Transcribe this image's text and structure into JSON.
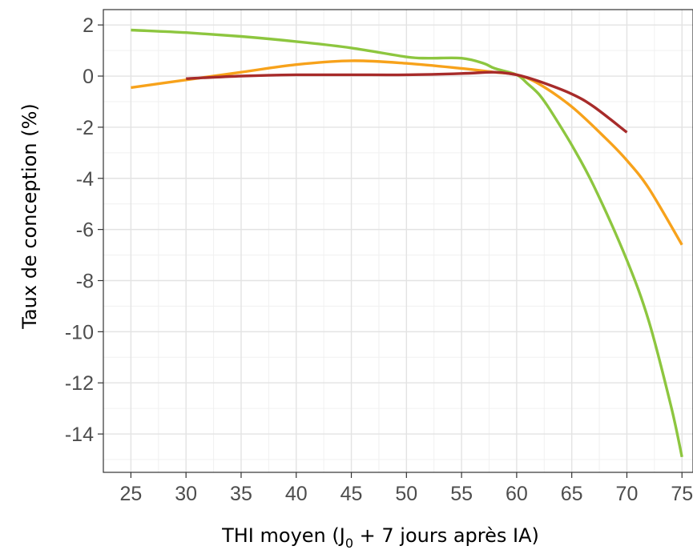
{
  "chart_data": {
    "type": "line",
    "title": "",
    "xlabel": "THI moyen",
    "xlabel_parts": {
      "main": "THI moyen (J",
      "sub": "0",
      "rest": " + 7 jours après IA)"
    },
    "ylabel": "Taux de conception (%)",
    "xlim": [
      22.5,
      76
    ],
    "ylim": [
      -15.5,
      2.6
    ],
    "x_ticks": [
      25,
      30,
      35,
      40,
      45,
      50,
      55,
      60,
      65,
      70,
      75
    ],
    "y_ticks": [
      2,
      0,
      -2,
      -4,
      -6,
      -8,
      -10,
      -12,
      -14
    ],
    "x_tick_labels": [
      "25",
      "30",
      "35",
      "40",
      "45",
      "50",
      "55",
      "60",
      "65",
      "70",
      "75"
    ],
    "y_tick_labels": [
      "2",
      "0",
      "-2",
      "-4",
      "-6",
      "-8",
      "-10",
      "-12",
      "-14"
    ],
    "grid": true,
    "legend": "none",
    "series": [
      {
        "color": "#8dc63f",
        "x": [
          25,
          30,
          35,
          40,
          45,
          50,
          52,
          55,
          57,
          58,
          60,
          61,
          62,
          63,
          65,
          67,
          70,
          72,
          74,
          75
        ],
        "y": [
          1.8,
          1.7,
          1.55,
          1.35,
          1.1,
          0.75,
          0.7,
          0.7,
          0.5,
          0.3,
          0.05,
          -0.3,
          -0.7,
          -1.3,
          -2.7,
          -4.3,
          -7.2,
          -9.6,
          -12.9,
          -14.9
        ]
      },
      {
        "color": "#f7a21b",
        "x": [
          25,
          30,
          35,
          40,
          45,
          50,
          55,
          58,
          60,
          62,
          65,
          68,
          70,
          72,
          75
        ],
        "y": [
          -0.45,
          -0.15,
          0.15,
          0.45,
          0.6,
          0.5,
          0.3,
          0.15,
          0.05,
          -0.3,
          -1.2,
          -2.4,
          -3.3,
          -4.4,
          -6.6
        ]
      },
      {
        "color": "#a72b2a",
        "x": [
          30,
          35,
          40,
          45,
          50,
          55,
          58,
          60,
          62,
          65,
          67,
          70
        ],
        "y": [
          -0.1,
          0.0,
          0.05,
          0.05,
          0.05,
          0.1,
          0.15,
          0.05,
          -0.2,
          -0.7,
          -1.2,
          -2.2
        ]
      }
    ]
  }
}
